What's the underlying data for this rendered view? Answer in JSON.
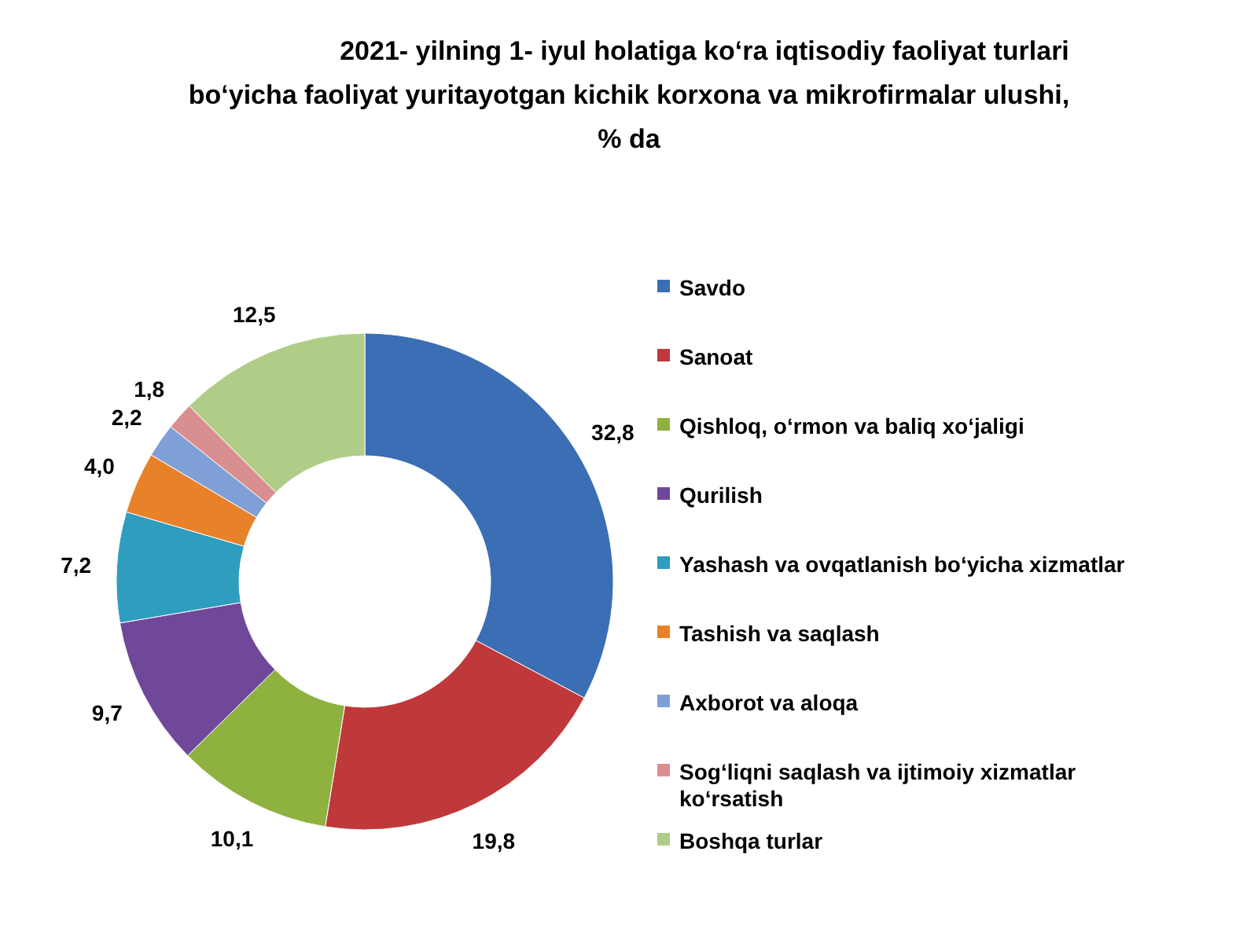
{
  "chart_data": {
    "type": "donut",
    "title": "2021- yilning 1- iyul holatiga ko‘ra iqtisodiy faoliyat turlari\nbo‘yicha faoliyat yuritayotgan kichik korxona va mikrofirmalar ulushi,\n% da",
    "categories": [
      "Savdo",
      "Sanoat",
      "Qishloq, o‘rmon va baliq xo‘jaligi",
      "Qurilish",
      "Yashash va ovqatlanish bo‘yicha xizmatlar",
      "Tashish va saqlash",
      "Axborot va aloqa",
      "Sog‘liqni saqlash va ijtimoiy xizmatlar ko‘rsatish",
      "Boshqa turlar"
    ],
    "values": [
      32.8,
      19.8,
      10.1,
      9.7,
      7.2,
      4.0,
      2.2,
      1.8,
      12.5
    ],
    "value_labels": [
      "32,8",
      "19,8",
      "10,1",
      "9,7",
      "7,2",
      "4,0",
      "2,2",
      "1,8",
      "12,5"
    ],
    "colors": [
      "#3b6eb4",
      "#c0393a",
      "#8eb13f",
      "#70489a",
      "#2f9dbd",
      "#e8822a",
      "#7f9fd6",
      "#d98e90",
      "#b0cd87"
    ],
    "legend": "right"
  }
}
